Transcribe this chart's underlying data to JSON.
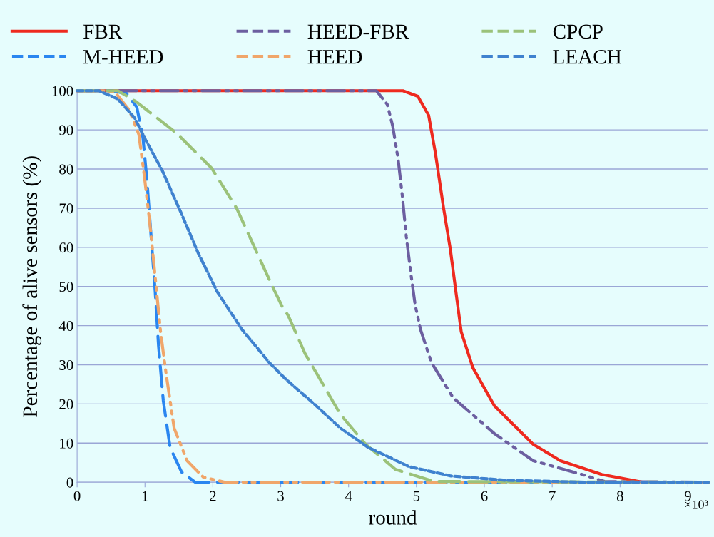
{
  "chart_data": {
    "type": "line",
    "xlabel": "round",
    "ylabel": "Percentage of alive sensors (%)",
    "xlim": [
      0,
      9.3
    ],
    "xticks": [
      0,
      1,
      2,
      3,
      4,
      5,
      6,
      7,
      8,
      9
    ],
    "ylim": [
      0,
      100
    ],
    "yticks": [
      0,
      10,
      20,
      30,
      40,
      50,
      60,
      70,
      80,
      90,
      100
    ],
    "grid": "y",
    "legend": "top",
    "marker": "none",
    "annotations": [
      "×10³"
    ],
    "series": [
      {
        "name": "FBR",
        "color": "#ee2a1f",
        "line_style": "solid",
        "x": [
          0,
          4.8,
          5.02,
          5.18,
          5.28,
          5.4,
          5.5,
          5.58,
          5.66,
          5.83,
          6.15,
          6.72,
          7.12,
          7.73,
          8.34,
          9.3
        ],
        "values": [
          100,
          100,
          98.6,
          93.7,
          84,
          70,
          59.4,
          48.8,
          38.4,
          29.3,
          19.5,
          9.7,
          5.5,
          2,
          0,
          0
        ]
      },
      {
        "name": "M-HEED",
        "color": "#2a86f0",
        "line_style": "dashed",
        "x": [
          0,
          0.5,
          0.73,
          0.88,
          0.97,
          1.03,
          1.09,
          1.15,
          1.2,
          1.27,
          1.37,
          1.54,
          1.74,
          9.3
        ],
        "values": [
          100,
          100,
          99.3,
          95.8,
          88,
          76.9,
          62.8,
          48.8,
          34.8,
          20.8,
          8.9,
          2.6,
          0,
          0
        ]
      },
      {
        "name": "HEED-FBR",
        "color": "#6c5fa0",
        "line_style": "dashdot",
        "x": [
          0,
          4.41,
          4.57,
          4.65,
          4.73,
          4.79,
          4.85,
          4.92,
          4.98,
          5.06,
          5.22,
          5.54,
          6.15,
          6.72,
          7.44,
          7.77,
          9.3
        ],
        "values": [
          100,
          100,
          96.5,
          91,
          82.5,
          73.4,
          62.8,
          53,
          45.4,
          39,
          30.6,
          21.6,
          12.4,
          5.5,
          2,
          0.2,
          0
        ]
      },
      {
        "name": "HEED",
        "color": "#f0a66a",
        "line_style": "dashdot",
        "x": [
          0,
          0.4,
          0.56,
          0.77,
          0.91,
          0.99,
          1.07,
          1.15,
          1.23,
          1.31,
          1.43,
          1.62,
          1.86,
          2.18,
          9.3
        ],
        "values": [
          100,
          100,
          99.6,
          95,
          88.8,
          78.3,
          66.4,
          52.5,
          38.4,
          27.9,
          13.8,
          5.5,
          1.3,
          0,
          0
        ]
      },
      {
        "name": "CPCP",
        "color": "#9bc27a",
        "line_style": "dashed",
        "x": [
          0,
          0.6,
          0.87,
          1.45,
          1.98,
          2.35,
          2.63,
          2.87,
          3.03,
          3.11,
          3.36,
          3.6,
          3.88,
          4.25,
          4.69,
          5.26,
          9.3
        ],
        "values": [
          100,
          100,
          97.2,
          89.4,
          80.3,
          70,
          59.4,
          50.3,
          44.6,
          42.6,
          32.8,
          25.7,
          17.3,
          9.7,
          3.3,
          0.2,
          0
        ]
      },
      {
        "name": "LEACH",
        "color": "#3f82cf",
        "line_style": "dotted",
        "x": [
          0,
          0.32,
          0.6,
          0.85,
          1.01,
          1.25,
          1.54,
          1.78,
          2.06,
          2.43,
          2.83,
          3.07,
          3.48,
          3.88,
          4.29,
          4.89,
          5.51,
          6.32,
          7.53,
          9.3
        ],
        "values": [
          100,
          100,
          97.9,
          93,
          87.4,
          79.8,
          68.5,
          58.7,
          48.8,
          39,
          30.6,
          26.4,
          20.2,
          13.8,
          8.9,
          4,
          1.6,
          0.5,
          0,
          0
        ]
      }
    ]
  }
}
